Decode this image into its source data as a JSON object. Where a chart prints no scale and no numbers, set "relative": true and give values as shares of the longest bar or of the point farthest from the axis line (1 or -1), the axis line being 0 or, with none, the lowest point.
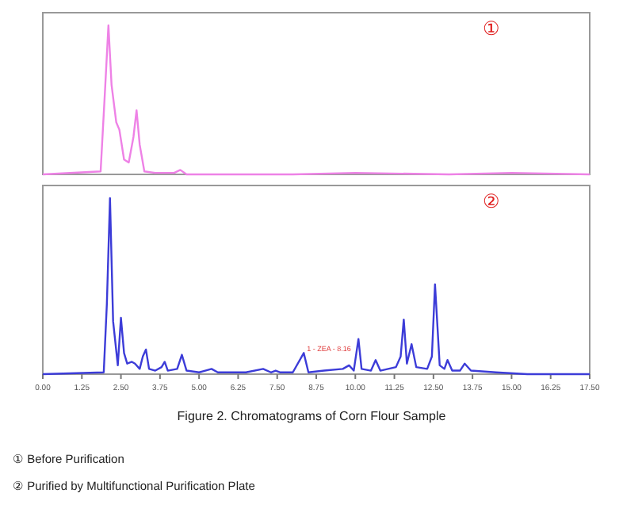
{
  "chart_data": [
    {
      "type": "line",
      "relative": true,
      "xlim": [
        0,
        17.5
      ],
      "tick_labels": false,
      "annotations": [
        "①"
      ],
      "series": [
        {
          "color": "#ee82e6",
          "x": [
            0,
            1.85,
            2.0,
            2.1,
            2.2,
            2.35,
            2.45,
            2.6,
            2.75,
            2.9,
            3.0,
            3.1,
            3.25,
            3.6,
            4.2,
            4.4,
            4.6,
            5.5,
            8,
            10,
            13,
            15,
            17.5
          ],
          "values": [
            0,
            0.02,
            0.6,
            1.0,
            0.6,
            0.35,
            0.3,
            0.1,
            0.08,
            0.25,
            0.43,
            0.2,
            0.02,
            0.01,
            0.01,
            0.03,
            0.0,
            0.0,
            0.0,
            0.01,
            0.0,
            0.01,
            0
          ]
        }
      ]
    },
    {
      "type": "line",
      "relative": true,
      "xlim": [
        0,
        17.5
      ],
      "tick_labels": "x",
      "title": "Figure 2.  Chromatograms of Corn Flour Sample",
      "xticks": [
        {
          "value": 0,
          "label": "0.00"
        },
        1.25,
        {
          "value": 2.5,
          "label": "2.50"
        },
        3.75,
        {
          "value": 5,
          "label": "5.00"
        },
        6.25,
        {
          "value": 7.5,
          "label": "7.50"
        },
        8.75,
        {
          "value": 10,
          "label": "10.00"
        },
        11.25,
        {
          "value": 12.5,
          "label": "12.50"
        },
        13.75,
        {
          "value": 15,
          "label": "15.00"
        },
        16.25,
        {
          "value": 17.5,
          "label": "17.50"
        }
      ],
      "annotations": [
        "②",
        {
          "text": "1 - ZEA - 8.16",
          "x": 8.35,
          "y": 0.12
        },
        "① Before Purification",
        "② Purified by Multifunctional Purification Plate"
      ],
      "series": [
        {
          "color": "#3c3cd8",
          "x": [
            0,
            1.95,
            2.05,
            2.15,
            2.25,
            2.4,
            2.5,
            2.6,
            2.7,
            2.85,
            2.95,
            3.1,
            3.2,
            3.3,
            3.4,
            3.6,
            3.8,
            3.9,
            4.0,
            4.3,
            4.45,
            4.6,
            5.0,
            5.4,
            5.6,
            6.5,
            7.05,
            7.3,
            7.45,
            7.6,
            8.0,
            8.35,
            8.5,
            9.0,
            9.6,
            9.8,
            9.95,
            10.1,
            10.2,
            10.5,
            10.65,
            10.8,
            11.3,
            11.45,
            11.55,
            11.65,
            11.8,
            11.95,
            12.3,
            12.45,
            12.55,
            12.7,
            12.85,
            12.95,
            13.1,
            13.35,
            13.5,
            13.7,
            14.5,
            15.5,
            17.5
          ],
          "values": [
            0,
            0.01,
            0.4,
            1.0,
            0.3,
            0.05,
            0.32,
            0.12,
            0.06,
            0.07,
            0.06,
            0.03,
            0.1,
            0.14,
            0.03,
            0.02,
            0.04,
            0.07,
            0.02,
            0.03,
            0.11,
            0.02,
            0.01,
            0.03,
            0.01,
            0.01,
            0.03,
            0.01,
            0.02,
            0.01,
            0.01,
            0.12,
            0.01,
            0.02,
            0.03,
            0.05,
            0.02,
            0.2,
            0.03,
            0.02,
            0.08,
            0.02,
            0.04,
            0.1,
            0.31,
            0.06,
            0.17,
            0.04,
            0.03,
            0.1,
            0.51,
            0.05,
            0.03,
            0.08,
            0.02,
            0.02,
            0.06,
            0.02,
            0.01,
            0,
            0
          ]
        }
      ]
    }
  ]
}
